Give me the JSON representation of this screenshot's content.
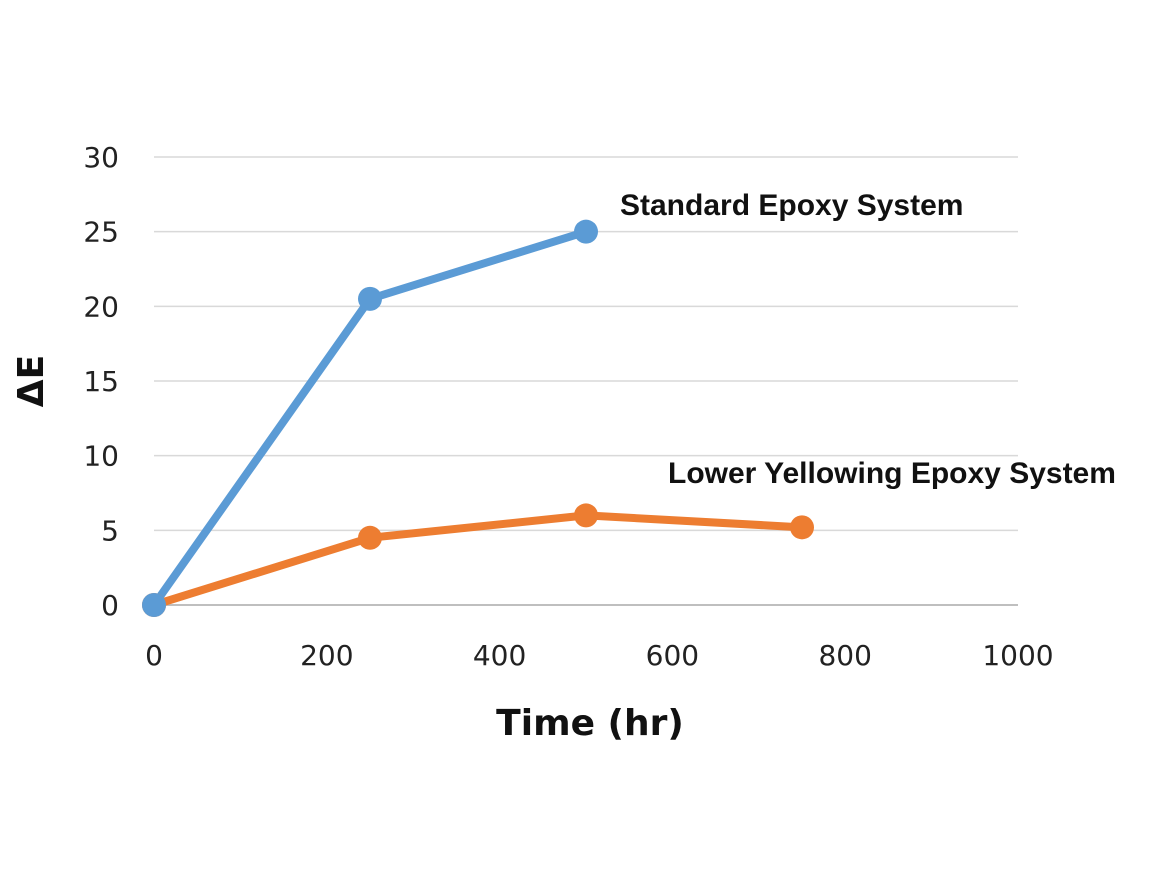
{
  "chart_data": {
    "type": "line",
    "xlabel": "Time (hr)",
    "ylabel": "ΔE",
    "xlim": [
      0,
      1000
    ],
    "ylim": [
      0,
      30
    ],
    "xticks": [
      0,
      200,
      400,
      600,
      800,
      1000
    ],
    "yticks": [
      0,
      5,
      10,
      15,
      20,
      25,
      30
    ],
    "grid": "horizontal",
    "series": [
      {
        "name": "Standard Epoxy System",
        "color": "#5B9BD5",
        "x": [
          0,
          250,
          500
        ],
        "y": [
          0,
          20.5,
          25
        ]
      },
      {
        "name": "Lower Yellowing Epoxy System",
        "color": "#ED7D31",
        "x": [
          0,
          250,
          500,
          750
        ],
        "y": [
          0,
          4.5,
          6,
          5.2
        ]
      }
    ]
  }
}
